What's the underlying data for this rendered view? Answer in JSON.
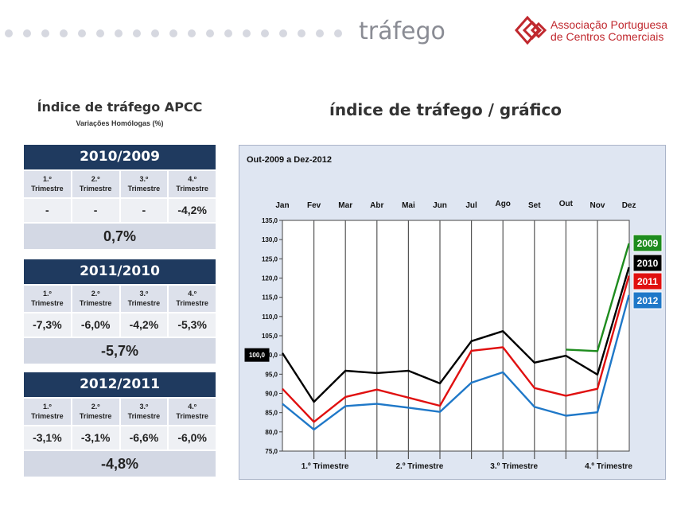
{
  "header": {
    "title": "tráfego",
    "dots": 19,
    "logo_line1": "Associação Portuguesa",
    "logo_line2": "de Centros Comerciais",
    "brand_color": "#c0282e"
  },
  "left": {
    "title": "Índice de tráfego APCC",
    "subtitle": "Variações Homólogas (%)",
    "quarter_labels": [
      {
        "num": "1.º",
        "word": "Trimestre"
      },
      {
        "num": "2.º",
        "word": "Trimestre"
      },
      {
        "num": "3.º",
        "word": "Trimestre"
      },
      {
        "num": "4.º",
        "word": "Trimestre"
      }
    ],
    "blocks": [
      {
        "period": "2010/2009",
        "values": [
          "-",
          "-",
          "-",
          "-4,2%"
        ],
        "total": "0,7%"
      },
      {
        "period": "2011/2010",
        "values": [
          "-7,3%",
          "-6,0%",
          "-4,2%",
          "-5,3%"
        ],
        "total": "-5,7%"
      },
      {
        "period": "2012/2011",
        "values": [
          "-3,1%",
          "-3,1%",
          "-6,6%",
          "-6,0%"
        ],
        "total": "-4,8%"
      }
    ]
  },
  "chart_title": "índice de tráfego / gráfico",
  "chart_data": {
    "type": "line",
    "subtitle": "Out-2009 a Dez-2012",
    "categories": [
      "Jan",
      "Fev",
      "Mar",
      "Abr",
      "Mai",
      "Jun",
      "Jul",
      "Ago",
      "Set",
      "Out",
      "Nov",
      "Dez"
    ],
    "ylim": [
      75,
      135
    ],
    "yticks": [
      "75,0",
      "80,0",
      "85,0",
      "90,0",
      "95,0",
      "100,0",
      "105,0",
      "110,0",
      "115,0",
      "120,0",
      "125,0",
      "130,0",
      "135,0"
    ],
    "ytick_values": [
      75,
      80,
      85,
      90,
      95,
      100,
      105,
      110,
      115,
      120,
      125,
      130,
      135
    ],
    "reference_value": 100,
    "reference_label": "100,0",
    "quarters": [
      "1.º Trimestre",
      "2.º Trimestre",
      "3.º Trimestre",
      "4.º Trimestre"
    ],
    "grid": true,
    "legend_position": "right",
    "series": [
      {
        "name": "2009",
        "color": "#1e8c1e",
        "values": [
          null,
          null,
          null,
          null,
          null,
          null,
          null,
          null,
          null,
          101.4,
          101.0,
          129.0
        ]
      },
      {
        "name": "2010",
        "color": "#000000",
        "values": [
          100.5,
          87.8,
          95.9,
          95.3,
          95.9,
          92.6,
          103.6,
          106.2,
          98.0,
          99.8,
          94.9,
          122.8
        ]
      },
      {
        "name": "2011",
        "color": "#e01010",
        "values": [
          91.2,
          82.6,
          89.1,
          91.0,
          88.9,
          86.8,
          101.1,
          102.0,
          91.4,
          89.4,
          91.2,
          120.6
        ]
      },
      {
        "name": "2012",
        "color": "#1f78c8",
        "values": [
          87.3,
          80.6,
          86.7,
          87.3,
          86.3,
          85.2,
          92.8,
          95.5,
          86.5,
          84.2,
          85.1,
          115.6
        ]
      }
    ]
  }
}
